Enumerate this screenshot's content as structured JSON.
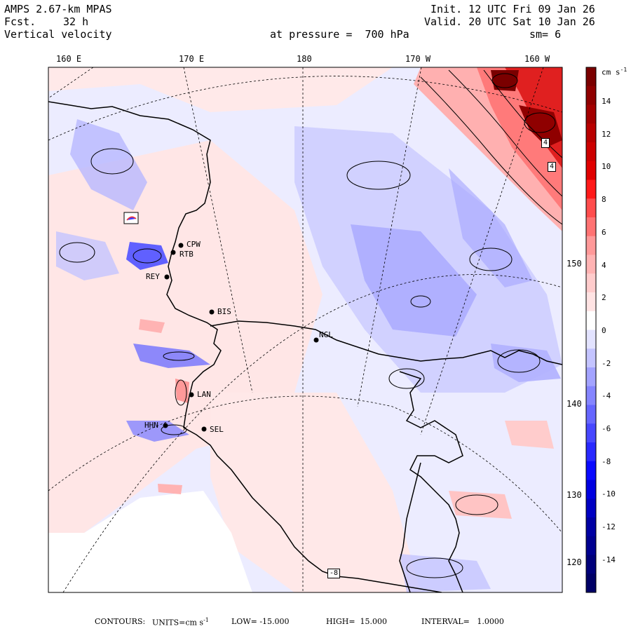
{
  "header": {
    "model": "AMPS 2.67-km MPAS",
    "fcst_label": "Fcst.",
    "fcst_value": "32 h",
    "variable": "Vertical velocity",
    "init": "Init. 12 UTC Fri 09 Jan 26",
    "valid": "Valid. 20 UTC Sat 10 Jan 26",
    "level": "at pressure =  700 hPa",
    "smoothing": "sm= 6"
  },
  "longitude_labels": [
    "160 E",
    "170 E",
    "180",
    "170 W",
    "160 W"
  ],
  "latitude_labels": [
    "150 W",
    "140 W",
    "130 W",
    "120 W"
  ],
  "colorbar": {
    "units": "cm s",
    "units_exp": "-1",
    "labels": [
      "14",
      "12",
      "10",
      "8",
      "6",
      "4",
      "2",
      "0",
      "-2",
      "-4",
      "-6",
      "-8",
      "-10",
      "-12",
      "-14"
    ],
    "colors": [
      "#7a0000",
      "#8f0000",
      "#a30000",
      "#b80000",
      "#cc0000",
      "#e00000",
      "#ff1a1a",
      "#ff4d4d",
      "#ff7373",
      "#ff9999",
      "#ffb3b3",
      "#ffcccc",
      "#ffe3e3",
      "#ffffff",
      "#e3e3ff",
      "#c4c4ff",
      "#a3a3ff",
      "#8585ff",
      "#6666ff",
      "#4747ff",
      "#2929ff",
      "#0a0aff",
      "#0000e0",
      "#0000c2",
      "#0000a3",
      "#000090",
      "#00007a",
      "#000066"
    ]
  },
  "stations": [
    {
      "code": "CPW"
    },
    {
      "code": "RTB"
    },
    {
      "code": "REY"
    },
    {
      "code": "BIS"
    },
    {
      "code": "NGL"
    },
    {
      "code": "LAN"
    },
    {
      "code": "HHN"
    },
    {
      "code": "SEL"
    }
  ],
  "box_labels": [
    "4",
    "4",
    "-8"
  ],
  "footer": {
    "contours": "CONTOURS:",
    "units_label": "UNITS=cm s",
    "units_exp": "-1",
    "low": "LOW= -15.000",
    "high": "HIGH=  15.000",
    "interval": "INTERVAL=   1.0000"
  }
}
